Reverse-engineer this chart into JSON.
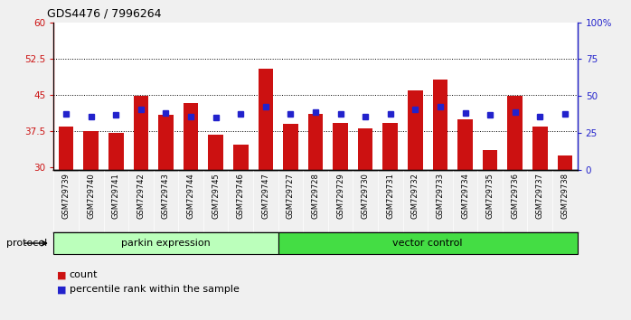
{
  "title": "GDS4476 / 7996264",
  "samples": [
    "GSM729739",
    "GSM729740",
    "GSM729741",
    "GSM729742",
    "GSM729743",
    "GSM729744",
    "GSM729745",
    "GSM729746",
    "GSM729747",
    "GSM729727",
    "GSM729728",
    "GSM729729",
    "GSM729730",
    "GSM729731",
    "GSM729732",
    "GSM729733",
    "GSM729734",
    "GSM729735",
    "GSM729736",
    "GSM729737",
    "GSM729738"
  ],
  "bar_values": [
    38.5,
    37.5,
    37.2,
    44.8,
    40.8,
    43.2,
    36.8,
    34.6,
    50.5,
    39.0,
    41.0,
    39.2,
    38.0,
    39.2,
    46.0,
    48.2,
    40.0,
    33.5,
    44.8,
    38.5,
    32.5
  ],
  "percentile_values": [
    41.0,
    40.5,
    40.8,
    42.0,
    41.2,
    40.5,
    40.2,
    41.0,
    42.5,
    41.0,
    41.5,
    41.0,
    40.5,
    41.0,
    42.0,
    42.5,
    41.2,
    40.8,
    41.5,
    40.5,
    41.0
  ],
  "bar_color": "#cc1111",
  "percentile_color": "#2222cc",
  "ylim_left": [
    29.5,
    60
  ],
  "ylim_right": [
    0,
    100
  ],
  "yticks_left": [
    30,
    37.5,
    45,
    52.5,
    60
  ],
  "yticks_right": [
    0,
    25,
    50,
    75,
    100
  ],
  "ytick_labels_left": [
    "30",
    "37.5",
    "45",
    "52.5",
    "60"
  ],
  "ytick_labels_right": [
    "0",
    "25",
    "50",
    "75",
    "100%"
  ],
  "group1_label": "parkin expression",
  "group2_label": "vector control",
  "group1_count": 9,
  "group2_count": 12,
  "group1_color": "#bbffbb",
  "group2_color": "#44dd44",
  "protocol_label": "protocol",
  "legend_count_label": "count",
  "legend_pct_label": "percentile rank within the sample",
  "fig_bg": "#f0f0f0",
  "plot_bg": "#ffffff",
  "xtick_bg": "#cccccc",
  "hline_values": [
    37.5,
    45.0,
    52.5
  ],
  "baseline": 29.5,
  "bar_width": 0.6
}
